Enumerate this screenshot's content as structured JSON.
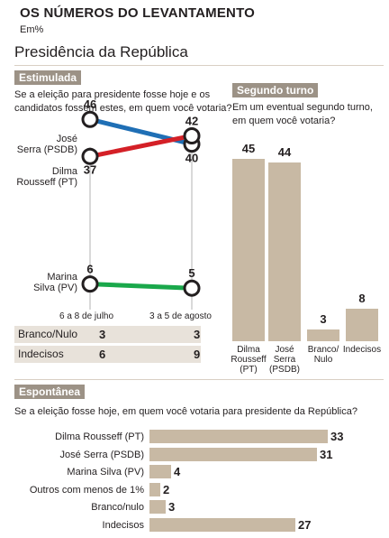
{
  "title": "OS NÚMEROS DO LEVANTAMENTO",
  "unit": "Em%",
  "subtitle": "Presidência da República",
  "stimulated": {
    "tag": "Estimulada",
    "question_line1": "Se a eleição para presidente fosse hoje e os",
    "question_line2": "candidatos fossem estes, em quem você votaria?",
    "serra_label1": "José",
    "serra_label2": "Serra (PSDB)",
    "dilma_label1": "Dilma",
    "dilma_label2": "Rousseff (PT)",
    "marina_label1": "Marina",
    "marina_label2": "Silva (PV)",
    "date1": "6 a 8 de julho",
    "date2": "3 a 5 de agosto",
    "rows": [
      {
        "label": "Branco/Nulo",
        "v1": "3",
        "v2": "3"
      },
      {
        "label": "Indecisos",
        "v1": "6",
        "v2": "9"
      }
    ]
  },
  "runoff": {
    "tag": "Segundo turno",
    "question_line1": "Em um eventual segundo turno,",
    "question_line2": "em quem você votaria?"
  },
  "spontaneous": {
    "tag": "Espontânea",
    "question": "Se a eleição fosse hoje, em quem você votaria para presidente da República?"
  },
  "colors": {
    "serra": "#1f6fb5",
    "dilma": "#d42027",
    "marina": "#1aa84b",
    "bar": "#c8b9a4",
    "tag": "#9c9286"
  },
  "chart_data": [
    {
      "type": "line",
      "title": "Estimulada",
      "categories": [
        "6 a 8 de julho",
        "3 a 5 de agosto"
      ],
      "series": [
        {
          "name": "José Serra (PSDB)",
          "values": [
            46,
            40
          ]
        },
        {
          "name": "Dilma Rousseff (PT)",
          "values": [
            37,
            42
          ]
        },
        {
          "name": "Marina Silva (PV)",
          "values": [
            6,
            5
          ]
        }
      ]
    },
    {
      "type": "bar",
      "title": "Segundo turno",
      "categories": [
        "Dilma Rousseff (PT)",
        "José Serra (PSDB)",
        "Branco/ Nulo",
        "Indecisos"
      ],
      "labels": [
        [
          "Dilma",
          "Rousseff",
          "(PT)"
        ],
        [
          "José",
          "Serra",
          "(PSDB)"
        ],
        [
          "Branco/",
          "Nulo"
        ],
        [
          "Indecisos"
        ]
      ],
      "values": [
        45,
        44,
        3,
        8
      ]
    },
    {
      "type": "bar",
      "title": "Espontânea",
      "categories": [
        "Dilma Rousseff (PT)",
        "José Serra (PSDB)",
        "Marina Silva (PV)",
        "Outros com menos de 1%",
        "Branco/nulo",
        "Indecisos"
      ],
      "values": [
        33,
        31,
        4,
        2,
        3,
        27
      ]
    }
  ]
}
